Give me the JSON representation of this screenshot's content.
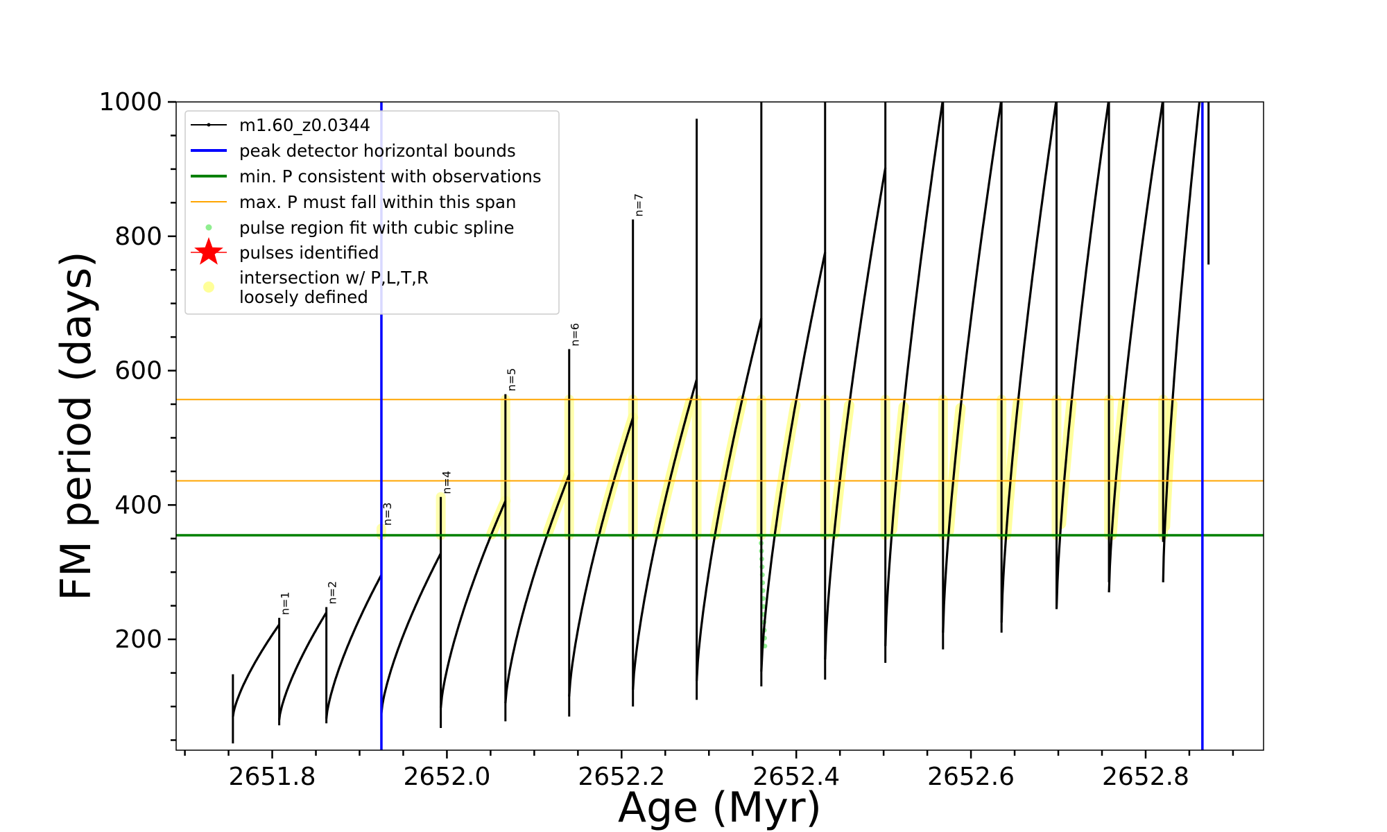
{
  "chart_data": {
    "type": "line",
    "title": "",
    "xlabel": "Age (Myr)",
    "ylabel": "FM period (days)",
    "xlim": [
      2651.69,
      2652.935
    ],
    "ylim": [
      35,
      1000
    ],
    "x_ticks": [
      2651.8,
      2652.0,
      2652.2,
      2652.4,
      2652.6,
      2652.8
    ],
    "x_tick_labels": [
      "2651.8",
      "2652.0",
      "2652.2",
      "2652.4",
      "2652.6",
      "2652.8"
    ],
    "y_ticks": [
      200,
      400,
      600,
      800,
      1000
    ],
    "y_tick_labels": [
      "200",
      "400",
      "600",
      "800",
      "1000"
    ],
    "grid": false,
    "legend_position": "top-left",
    "legend": [
      {
        "label": "m1.60_z0.0344",
        "color": "#000000",
        "marker": "line-dot"
      },
      {
        "label": "peak detector horizontal bounds",
        "color": "#0000ff",
        "marker": "line"
      },
      {
        "label": "min. P consistent with observations",
        "color": "#008000",
        "marker": "line"
      },
      {
        "label": "max. P must fall within this span",
        "color": "#ffa500",
        "marker": "thin-line"
      },
      {
        "label": "pulse region fit with cubic spline",
        "color": "#90ee90",
        "marker": "dot"
      },
      {
        "label": "pulses identified",
        "color": "#ff0000",
        "marker": "star"
      },
      {
        "label": "intersection w/ P,L,T,R",
        "label2": "loosely defined",
        "color": "#ffff99",
        "marker": "circle"
      }
    ],
    "vertical_lines": [
      {
        "series": "peak detector horizontal bounds",
        "x": 2651.925,
        "color": "#0000ff"
      },
      {
        "series": "peak detector horizontal bounds",
        "x": 2652.865,
        "color": "#0000ff"
      }
    ],
    "horizontal_lines": [
      {
        "series": "min. P consistent with observations",
        "y": 355,
        "color": "#008000"
      },
      {
        "series": "max. P must fall within this span",
        "y": 436,
        "color": "#ffa500"
      },
      {
        "series": "max. P must fall within this span",
        "y": 557,
        "color": "#ffa500"
      }
    ],
    "cycles": [
      {
        "start": 2651.755,
        "end": 2651.808,
        "min": 85,
        "max": 222
      },
      {
        "start": 2651.808,
        "end": 2651.862,
        "min": 80,
        "max": 240
      },
      {
        "start": 2651.862,
        "end": 2651.925,
        "min": 82,
        "max": 296
      },
      {
        "start": 2651.925,
        "end": 2651.993,
        "min": 90,
        "max": 328
      },
      {
        "start": 2651.993,
        "end": 2652.067,
        "min": 98,
        "max": 406
      },
      {
        "start": 2652.067,
        "end": 2652.14,
        "min": 105,
        "max": 445
      },
      {
        "start": 2652.14,
        "end": 2652.213,
        "min": 115,
        "max": 530
      },
      {
        "start": 2652.213,
        "end": 2652.286,
        "min": 125,
        "max": 587
      },
      {
        "start": 2652.286,
        "end": 2652.36,
        "min": 138,
        "max": 678
      },
      {
        "start": 2652.36,
        "end": 2652.433,
        "min": 152,
        "max": 776
      },
      {
        "start": 2652.433,
        "end": 2652.502,
        "min": 170,
        "max": 902
      },
      {
        "start": 2652.502,
        "end": 2652.568,
        "min": 190,
        "max": 1005
      },
      {
        "start": 2652.568,
        "end": 2652.635,
        "min": 210,
        "max": 1005
      },
      {
        "start": 2652.635,
        "end": 2652.698,
        "min": 225,
        "max": 1005
      },
      {
        "start": 2652.698,
        "end": 2652.758,
        "min": 245,
        "max": 1005
      },
      {
        "start": 2652.758,
        "end": 2652.82,
        "min": 270,
        "max": 1005
      },
      {
        "start": 2652.82,
        "end": 2652.862,
        "min": 285,
        "max": 1005
      }
    ],
    "spikes": [
      {
        "x": 2651.755,
        "top": 148,
        "bottom": 45
      },
      {
        "x": 2651.808,
        "top": 232,
        "bottom": 72
      },
      {
        "x": 2651.862,
        "top": 248,
        "bottom": 75
      },
      {
        "x": 2651.925,
        "top": 365,
        "bottom": 82
      },
      {
        "x": 2651.993,
        "top": 412,
        "bottom": 68
      },
      {
        "x": 2652.067,
        "top": 565,
        "bottom": 78
      },
      {
        "x": 2652.14,
        "top": 632,
        "bottom": 85
      },
      {
        "x": 2652.213,
        "top": 825,
        "bottom": 100
      },
      {
        "x": 2652.286,
        "top": 975,
        "bottom": 110
      },
      {
        "x": 2652.36,
        "top": 1005,
        "bottom": 130
      },
      {
        "x": 2652.433,
        "top": 1005,
        "bottom": 140
      },
      {
        "x": 2652.502,
        "top": 1005,
        "bottom": 165
      },
      {
        "x": 2652.568,
        "top": 1005,
        "bottom": 185
      },
      {
        "x": 2652.635,
        "top": 1005,
        "bottom": 210
      },
      {
        "x": 2652.698,
        "top": 1005,
        "bottom": 245
      },
      {
        "x": 2652.758,
        "top": 1005,
        "bottom": 285
      },
      {
        "x": 2652.82,
        "top": 1005,
        "bottom": 345
      },
      {
        "x": 2652.872,
        "top": 1005,
        "bottom": 758
      }
    ],
    "pulse_labels": [
      {
        "x": 2651.808,
        "y": 232,
        "text": "n=1"
      },
      {
        "x": 2651.862,
        "y": 248,
        "text": "n=2"
      },
      {
        "x": 2651.925,
        "y": 365,
        "text": "n=3"
      },
      {
        "x": 2651.993,
        "y": 412,
        "text": "n=4"
      },
      {
        "x": 2652.067,
        "y": 565,
        "text": "n=5"
      },
      {
        "x": 2652.14,
        "y": 632,
        "text": "n=6"
      },
      {
        "x": 2652.213,
        "y": 825,
        "text": "n=7"
      }
    ],
    "spline_fit": {
      "x": 2652.364,
      "y_range": [
        190,
        355
      ],
      "color": "#90ee90"
    },
    "highlight_band": {
      "y_range": [
        355,
        557
      ],
      "color": "#ffff99"
    }
  }
}
